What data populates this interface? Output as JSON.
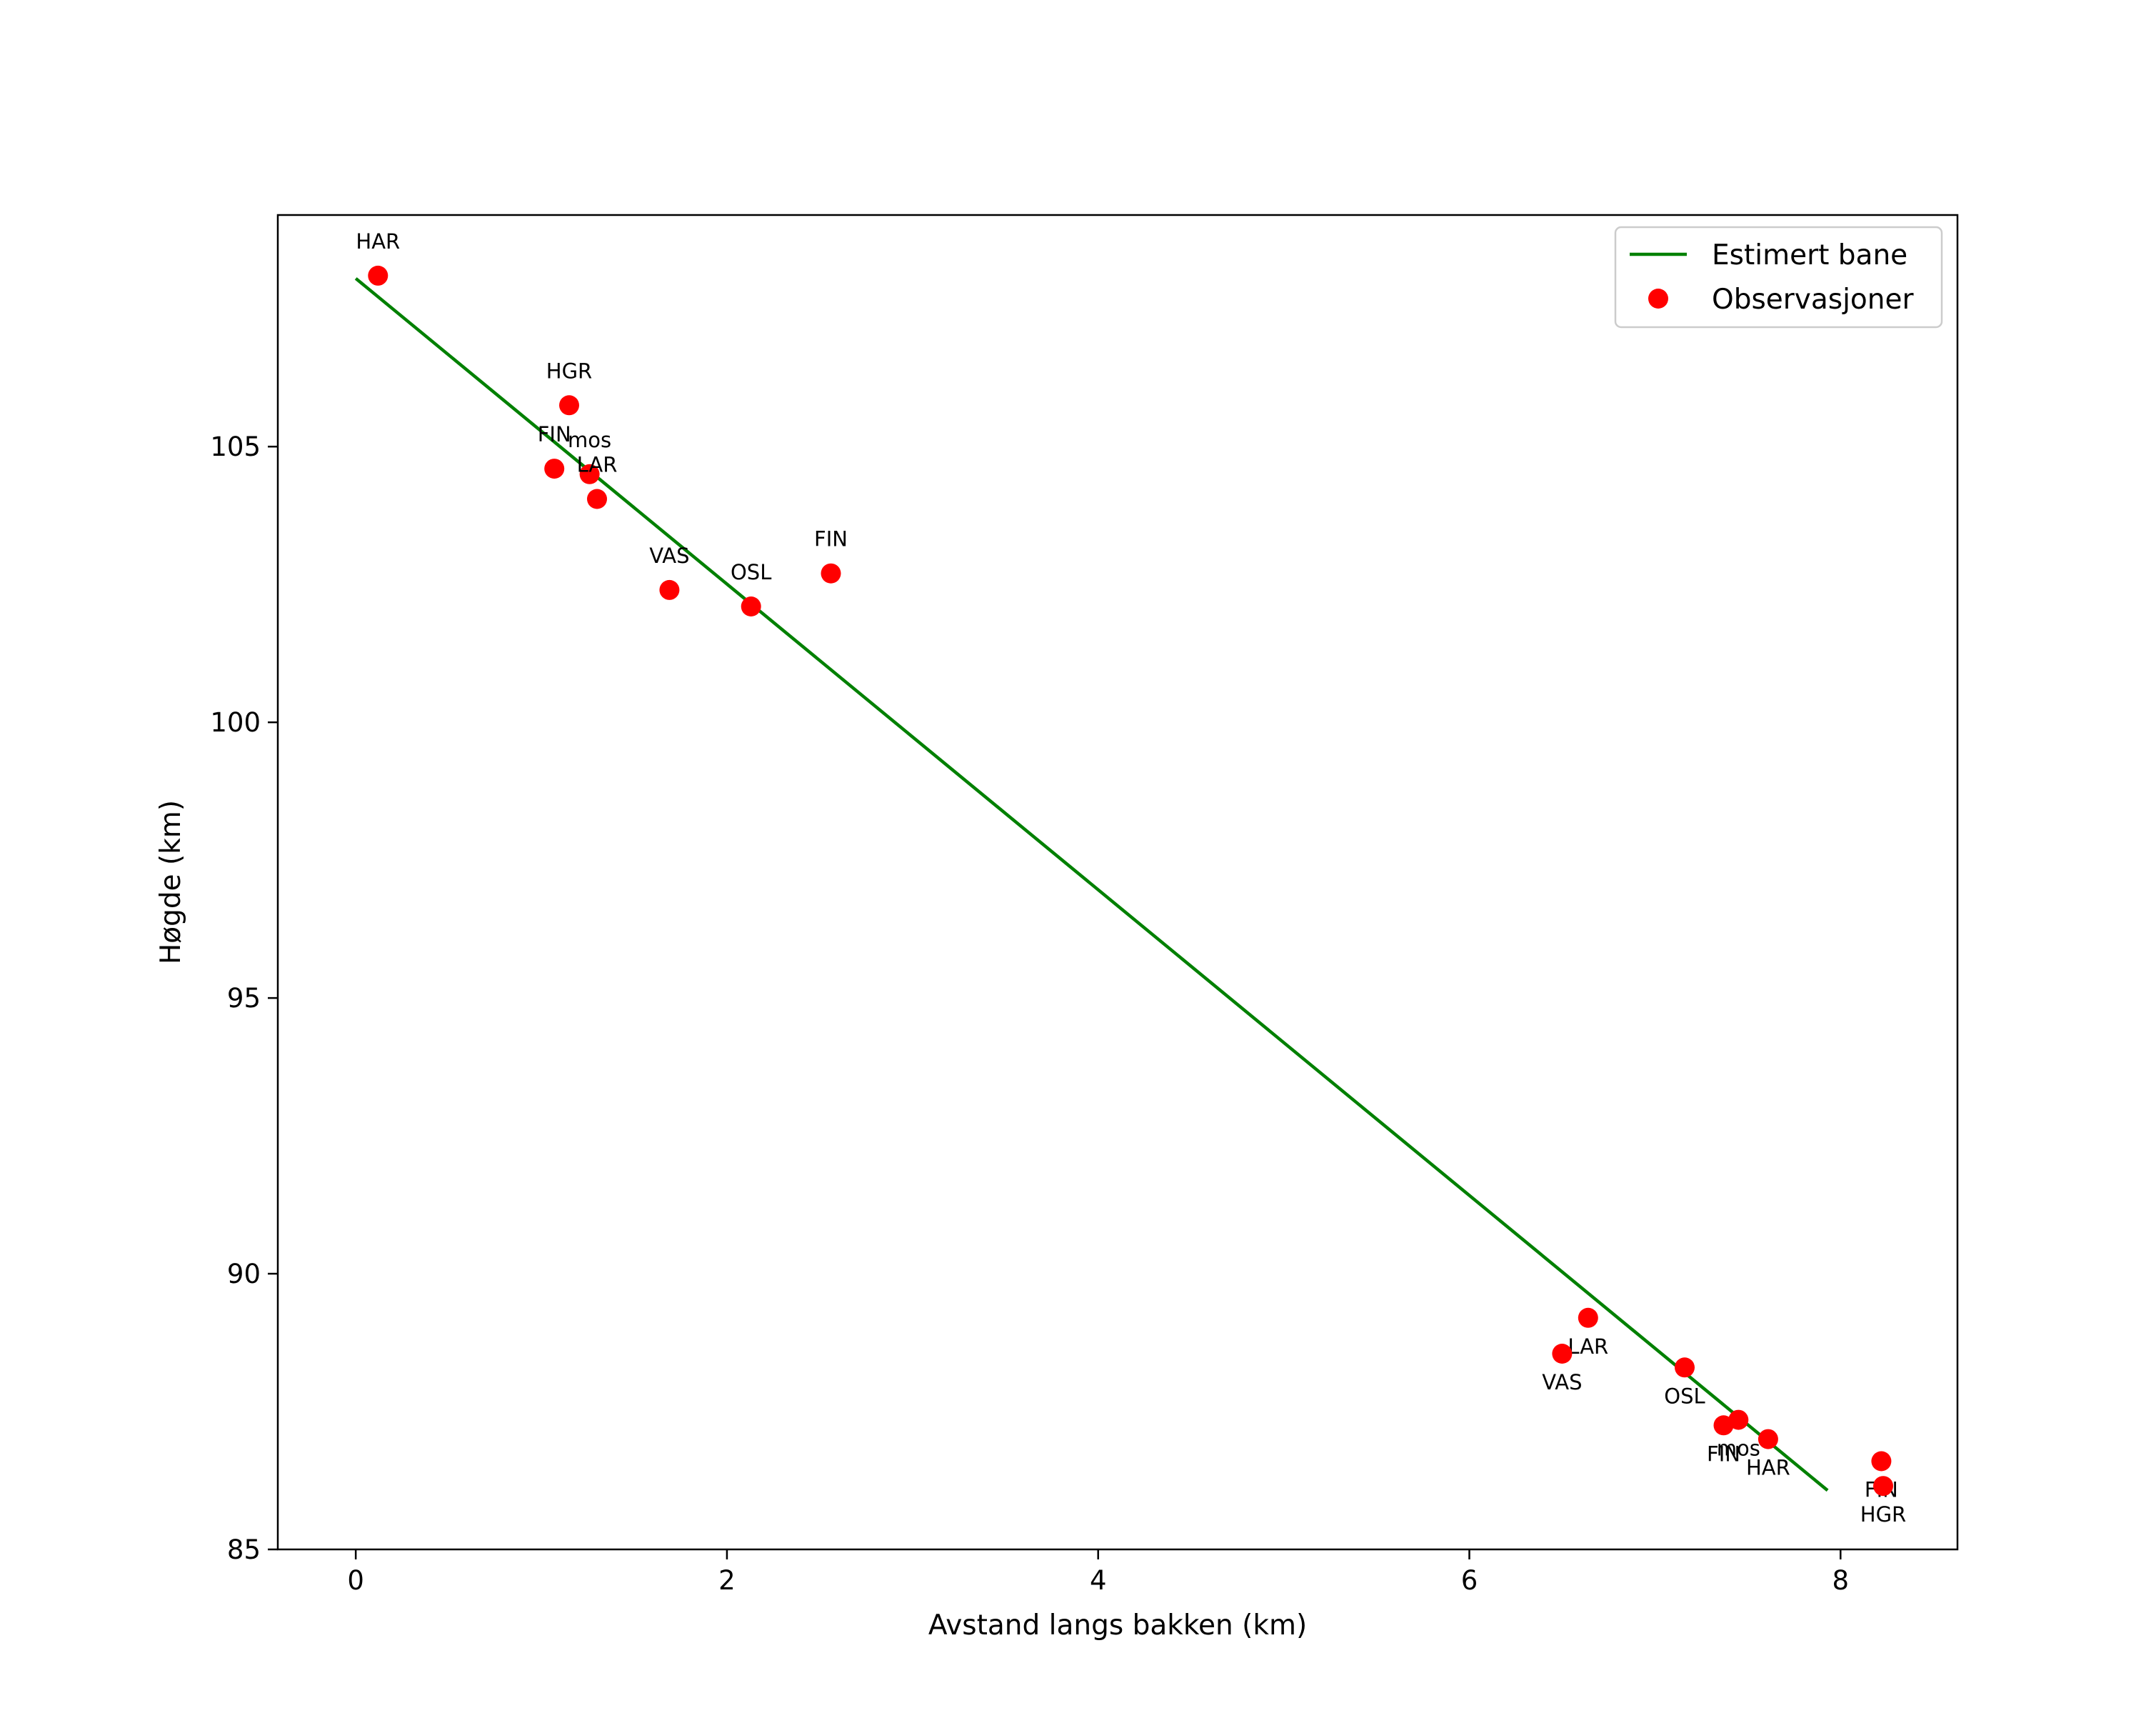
{
  "chart_data": {
    "type": "scatter",
    "title": "",
    "xlabel": "Avstand langs bakken (km)",
    "ylabel": "Høgde (km)",
    "xlim": [
      -0.42,
      8.63
    ],
    "ylim": [
      85.0,
      109.2
    ],
    "x_ticks": [
      {
        "value": 0,
        "label": "0"
      },
      {
        "value": 2,
        "label": "2"
      },
      {
        "value": 4,
        "label": "4"
      },
      {
        "value": 6,
        "label": "6"
      },
      {
        "value": 8,
        "label": "8"
      }
    ],
    "y_ticks": [
      {
        "value": 85,
        "label": "85"
      },
      {
        "value": 90,
        "label": "90"
      },
      {
        "value": 95,
        "label": "95"
      },
      {
        "value": 100,
        "label": "100"
      },
      {
        "value": 105,
        "label": "105"
      }
    ],
    "grid": false,
    "legend_position": "top-right",
    "series": [
      {
        "name": "Estimert bane",
        "kind": "line",
        "color": "#008000",
        "points": [
          {
            "x": 0.0,
            "y": 108.05
          },
          {
            "x": 7.93,
            "y": 86.07
          }
        ]
      },
      {
        "name": "Observasjoner",
        "kind": "scatter",
        "color": "#ff0000",
        "points": [
          {
            "x": 0.12,
            "y": 108.1,
            "label": "HAR",
            "label_pos": "above"
          },
          {
            "x": 1.15,
            "y": 105.75,
            "label": "HGR",
            "label_pos": "above"
          },
          {
            "x": 1.07,
            "y": 104.6,
            "label": "FIN",
            "label_pos": "above"
          },
          {
            "x": 1.26,
            "y": 104.5,
            "label": "mos",
            "label_pos": "above"
          },
          {
            "x": 1.3,
            "y": 104.05,
            "label": "LAR",
            "label_pos": "above"
          },
          {
            "x": 1.69,
            "y": 102.4,
            "label": "VAS",
            "label_pos": "above"
          },
          {
            "x": 2.13,
            "y": 102.1,
            "label": "OSL",
            "label_pos": "above"
          },
          {
            "x": 2.56,
            "y": 102.7,
            "label": "FIN",
            "label_pos": "above"
          },
          {
            "x": 6.64,
            "y": 89.2,
            "label": "LAR",
            "label_pos": "below"
          },
          {
            "x": 6.5,
            "y": 88.55,
            "label": "VAS",
            "label_pos": "below"
          },
          {
            "x": 7.16,
            "y": 88.3,
            "label": "OSL",
            "label_pos": "below"
          },
          {
            "x": 7.45,
            "y": 87.35,
            "label": "mos",
            "label_pos": "below"
          },
          {
            "x": 7.37,
            "y": 87.25,
            "label": "FIN",
            "label_pos": "below"
          },
          {
            "x": 7.61,
            "y": 87.0,
            "label": "HAR",
            "label_pos": "below"
          },
          {
            "x": 8.22,
            "y": 86.6,
            "label": "FIN",
            "label_pos": "below"
          },
          {
            "x": 8.23,
            "y": 86.15,
            "label": "HGR",
            "label_pos": "below"
          }
        ]
      }
    ]
  },
  "legend": {
    "items": [
      {
        "label": "Estimert bane",
        "marker": "line",
        "color": "#008000"
      },
      {
        "label": "Observasjoner",
        "marker": "dot",
        "color": "#ff0000"
      }
    ]
  },
  "colors": {
    "line": "#008000",
    "points": "#ff0000",
    "axes": "#000000",
    "background": "#ffffff"
  }
}
